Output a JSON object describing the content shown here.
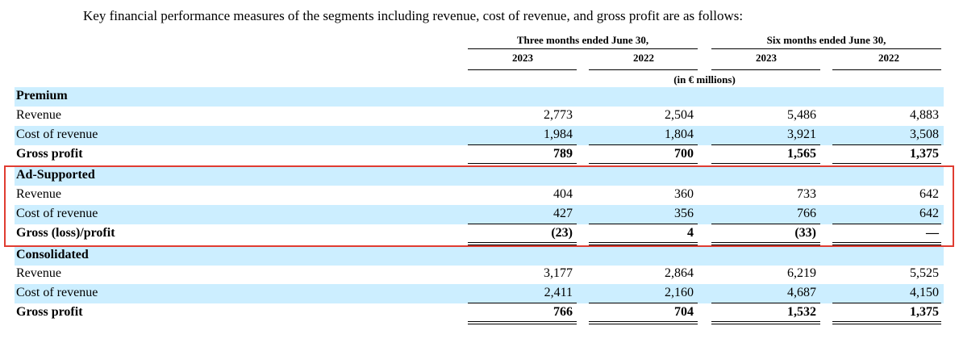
{
  "intro": "Key financial performance measures of the segments including revenue, cost of revenue, and gross profit are as follows:",
  "header": {
    "period_three": "Three months ended June 30,",
    "period_six": "Six months ended June 30,",
    "years": [
      "2023",
      "2022",
      "2023",
      "2022"
    ],
    "units": "(in € millions)"
  },
  "sections": {
    "premium": {
      "title": "Premium",
      "revenue": {
        "label": "Revenue",
        "values": [
          "2,773",
          "2,504",
          "5,486",
          "4,883"
        ]
      },
      "cost": {
        "label": "Cost of revenue",
        "values": [
          "1,984",
          "1,804",
          "3,921",
          "3,508"
        ]
      },
      "gross": {
        "label": "Gross profit",
        "values": [
          "789",
          "700",
          "1,565",
          "1,375"
        ]
      }
    },
    "ad_supported": {
      "title": "Ad-Supported",
      "revenue": {
        "label": "Revenue",
        "values": [
          "404",
          "360",
          "733",
          "642"
        ]
      },
      "cost": {
        "label": "Cost of revenue",
        "values": [
          "427",
          "356",
          "766",
          "642"
        ]
      },
      "gross": {
        "label": "Gross (loss)/profit",
        "values": [
          "(23)",
          "4",
          "(33)",
          "—"
        ]
      }
    },
    "consolidated": {
      "title": "Consolidated",
      "revenue": {
        "label": "Revenue",
        "values": [
          "3,177",
          "2,864",
          "6,219",
          "5,525"
        ]
      },
      "cost": {
        "label": "Cost of revenue",
        "values": [
          "2,411",
          "2,160",
          "4,687",
          "4,150"
        ]
      },
      "gross": {
        "label": "Gross profit",
        "values": [
          "766",
          "704",
          "1,532",
          "1,375"
        ]
      }
    }
  },
  "colors": {
    "row_shade": "#cceeff",
    "highlight_border": "#e03c31"
  }
}
